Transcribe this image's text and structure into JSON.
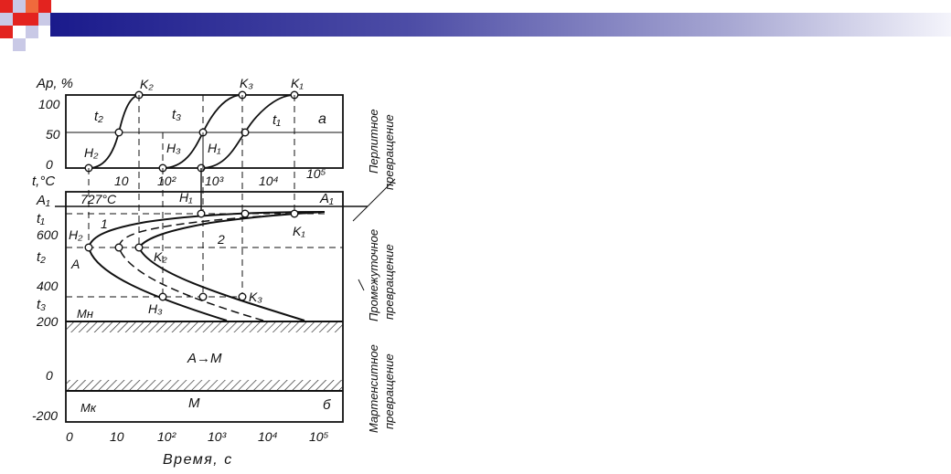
{
  "header": {
    "logo_colors": [
      "#e3231f",
      "#f06a3c",
      "#c9c9e6",
      "#1a1a8c"
    ]
  },
  "diagram": {
    "top": {
      "y_title": "Ap, %",
      "y_ticks": [
        "100",
        "50",
        "0"
      ],
      "x_ticks": [
        "10",
        "10²",
        "10³",
        "10⁴",
        "10⁵"
      ],
      "panel_label": "a",
      "curve_labels": {
        "t2": "t₂",
        "t3": "t₃",
        "t1": "t₁"
      },
      "start_labels": {
        "H2": "H₂",
        "H3": "H₃",
        "H1": "H₁"
      },
      "end_labels": {
        "K2": "K₂",
        "K3": "K₃",
        "K1": "K₁"
      }
    },
    "bottom": {
      "y_title": "t,°C",
      "y_ticks": [
        "600",
        "400",
        "200",
        "0",
        "-200"
      ],
      "x_ticks": [
        "0",
        "10",
        "10²",
        "10³",
        "10⁴",
        "10⁵"
      ],
      "x_title": "Время, с",
      "labels": {
        "A1_left": "A₁",
        "A1_right": "A₁",
        "temp_727": "727°C",
        "t1": "t₁",
        "t2": "t₂",
        "t3": "t₃",
        "H1": "H₁",
        "K1": "K₁",
        "H2": "H₂",
        "K2": "K₂",
        "H3": "H₃",
        "K3": "K₃",
        "curve1": "1",
        "curve2": "2",
        "A": "A",
        "Mn": "Mн",
        "Mk": "Mк",
        "region_AM": "A→M",
        "region_M": "M",
        "panel_label": "б"
      }
    },
    "side_labels": {
      "pearlite": [
        "Перлитное",
        "превращение"
      ],
      "intermediate": [
        "Промежуточное",
        "превращение"
      ],
      "martensite": [
        "Мартенситное",
        "превращение"
      ]
    }
  }
}
